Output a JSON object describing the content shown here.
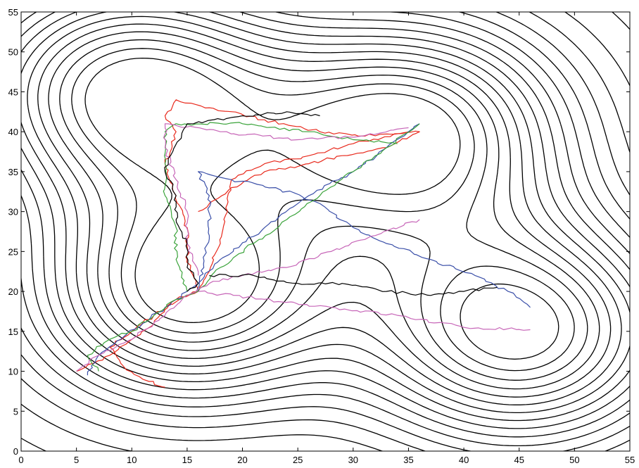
{
  "chart_data": {
    "type": "contour",
    "title": "",
    "xlabel": "",
    "ylabel": "",
    "xlim": [
      0,
      55
    ],
    "ylim": [
      0,
      55
    ],
    "xticks": [
      0,
      5,
      10,
      15,
      20,
      25,
      30,
      35,
      40,
      45,
      50,
      55
    ],
    "yticks": [
      0,
      5,
      10,
      15,
      20,
      25,
      30,
      35,
      40,
      45,
      50,
      55
    ],
    "grid": false,
    "legend": "none",
    "contour_centers": [
      {
        "x": 10,
        "y": 45
      },
      {
        "x": 35,
        "y": 40
      },
      {
        "x": 15,
        "y": 20
      },
      {
        "x": 45,
        "y": 15
      }
    ],
    "series": [
      {
        "color": "#e8291c",
        "points": [
          [
            5,
            10
          ],
          [
            8,
            12
          ],
          [
            10,
            14
          ],
          [
            12,
            16
          ],
          [
            13,
            18
          ],
          [
            15,
            19.5
          ],
          [
            16,
            20
          ],
          [
            15,
            24
          ],
          [
            15,
            28
          ],
          [
            14,
            32
          ],
          [
            13,
            36
          ],
          [
            14,
            40
          ],
          [
            13,
            42
          ],
          [
            14,
            44
          ],
          [
            17,
            43
          ],
          [
            22,
            41.5
          ],
          [
            27,
            40
          ],
          [
            32,
            39.5
          ],
          [
            36,
            40
          ],
          [
            33,
            38
          ],
          [
            29,
            37
          ],
          [
            26,
            36
          ],
          [
            22,
            35
          ],
          [
            19,
            33
          ],
          [
            16,
            30
          ]
        ]
      },
      {
        "color": "#e8291c",
        "points": [
          [
            13,
            8
          ],
          [
            11,
            9
          ],
          [
            9,
            11
          ],
          [
            8,
            13
          ],
          [
            10,
            15
          ],
          [
            12,
            17
          ],
          [
            14,
            19
          ],
          [
            16,
            20
          ],
          [
            18,
            26
          ],
          [
            19,
            34
          ],
          [
            22,
            36
          ],
          [
            26,
            37
          ],
          [
            30,
            38.5
          ],
          [
            35,
            40
          ]
        ]
      },
      {
        "color": "#3a4fa8",
        "points": [
          [
            6,
            9.5
          ],
          [
            7,
            12
          ],
          [
            9,
            14
          ],
          [
            11,
            16
          ],
          [
            13,
            18
          ],
          [
            15,
            20
          ],
          [
            16,
            21
          ],
          [
            18,
            24
          ],
          [
            22,
            28
          ],
          [
            26,
            32
          ],
          [
            30,
            35
          ],
          [
            33,
            38
          ],
          [
            36,
            41
          ]
        ]
      },
      {
        "color": "#3a4fa8",
        "points": [
          [
            16,
            20
          ],
          [
            17,
            27
          ],
          [
            17,
            32
          ],
          [
            16,
            35
          ],
          [
            19,
            34
          ],
          [
            23,
            33
          ],
          [
            27,
            31
          ],
          [
            30,
            28
          ],
          [
            33,
            26
          ],
          [
            37,
            24
          ],
          [
            41,
            22
          ],
          [
            44,
            20
          ],
          [
            46,
            18
          ]
        ]
      },
      {
        "color": "#3aa33a",
        "points": [
          [
            7,
            10
          ],
          [
            6,
            12
          ],
          [
            8,
            14
          ],
          [
            10,
            15
          ],
          [
            12,
            17
          ],
          [
            14,
            19
          ],
          [
            16,
            20
          ],
          [
            18,
            23
          ],
          [
            21,
            26
          ],
          [
            24,
            29
          ],
          [
            27,
            32
          ],
          [
            30,
            35
          ],
          [
            33,
            38
          ],
          [
            36,
            41
          ]
        ]
      },
      {
        "color": "#3aa33a",
        "points": [
          [
            15,
            20
          ],
          [
            14,
            24
          ],
          [
            14,
            28
          ],
          [
            13,
            32
          ],
          [
            13,
            36
          ],
          [
            13,
            40
          ],
          [
            14,
            41
          ],
          [
            20,
            41
          ],
          [
            26,
            40
          ],
          [
            30,
            39
          ],
          [
            34,
            38.5
          ]
        ]
      },
      {
        "color": "#c766b8",
        "points": [
          [
            16,
            20
          ],
          [
            22,
            19
          ],
          [
            28,
            18
          ],
          [
            34,
            17
          ],
          [
            40,
            15.5
          ],
          [
            46,
            15.2
          ]
        ]
      },
      {
        "color": "#c766b8",
        "points": [
          [
            5,
            10
          ],
          [
            7,
            12
          ],
          [
            10,
            14
          ],
          [
            13,
            17
          ],
          [
            15,
            19.5
          ],
          [
            17,
            21
          ],
          [
            20,
            22
          ],
          [
            24,
            23
          ],
          [
            28,
            25
          ],
          [
            32,
            27
          ],
          [
            36,
            29
          ]
        ]
      },
      {
        "color": "#c766b8",
        "points": [
          [
            16,
            22
          ],
          [
            15,
            26
          ],
          [
            15,
            30
          ],
          [
            14,
            34
          ],
          [
            13,
            38
          ],
          [
            13,
            41
          ],
          [
            18,
            40
          ],
          [
            25,
            39
          ],
          [
            31,
            39.5
          ],
          [
            35,
            40.5
          ]
        ]
      },
      {
        "color": "#000000",
        "points": [
          [
            15,
            20
          ],
          [
            16,
            21
          ],
          [
            15,
            23
          ],
          [
            15,
            26
          ],
          [
            14,
            29
          ],
          [
            14,
            32
          ],
          [
            13,
            35
          ],
          [
            13.5,
            37
          ],
          [
            15,
            41
          ],
          [
            20,
            42
          ],
          [
            24,
            42.5
          ],
          [
            27,
            42
          ]
        ]
      },
      {
        "color": "#000000",
        "points": [
          [
            17,
            22
          ],
          [
            21,
            22
          ],
          [
            25,
            21
          ],
          [
            29,
            21
          ],
          [
            33,
            20
          ],
          [
            37,
            19.5
          ],
          [
            40,
            20
          ],
          [
            43,
            20.5
          ]
        ]
      }
    ]
  }
}
